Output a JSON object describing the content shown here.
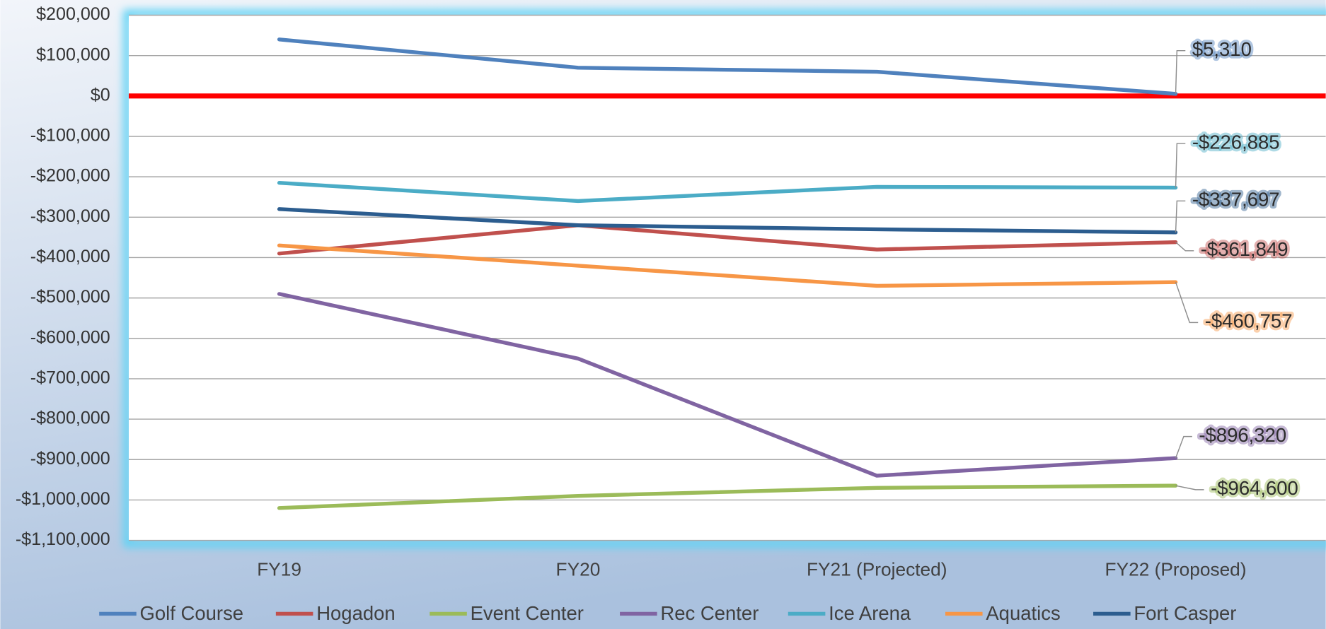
{
  "chart_data": {
    "type": "line",
    "categories": [
      "FY19",
      "FY20",
      "FY21 (Projected)",
      "FY22 (Proposed)"
    ],
    "series": [
      {
        "name": "Golf Course",
        "color": "#4f81bd",
        "values": [
          140000,
          70000,
          60000,
          5310
        ],
        "value_labels": [
          null,
          null,
          null,
          "$5,310"
        ]
      },
      {
        "name": "Hogadon",
        "color": "#c0504d",
        "values": [
          -390000,
          -320000,
          -380000,
          -361849
        ],
        "value_labels": [
          null,
          null,
          null,
          "-$361,849"
        ]
      },
      {
        "name": "Event Center",
        "color": "#9bbb59",
        "values": [
          -1020000,
          -990000,
          -970000,
          -964600
        ],
        "value_labels": [
          null,
          null,
          null,
          "-$964,600"
        ]
      },
      {
        "name": "Rec Center",
        "color": "#8064a2",
        "values": [
          -490000,
          -650000,
          -940000,
          -896320
        ],
        "value_labels": [
          null,
          null,
          null,
          "-$896,320"
        ]
      },
      {
        "name": "Ice Arena",
        "color": "#4bacc6",
        "values": [
          -215000,
          -260000,
          -225000,
          -226885
        ],
        "value_labels": [
          null,
          null,
          null,
          "-$226,885"
        ]
      },
      {
        "name": "Aquatics",
        "color": "#f79646",
        "values": [
          -370000,
          -420000,
          -470000,
          -460757
        ],
        "value_labels": [
          null,
          null,
          null,
          "-$460,757"
        ]
      },
      {
        "name": "Fort Casper",
        "color": "#2c5d8f",
        "values": [
          -280000,
          -320000,
          -330000,
          -337697
        ],
        "value_labels": [
          null,
          null,
          null,
          "-$337,697"
        ]
      }
    ],
    "ylim": [
      -1100000,
      200000
    ],
    "yticks": [
      {
        "value": 200000,
        "label": "$200,000"
      },
      {
        "value": 100000,
        "label": "$100,000"
      },
      {
        "value": 0,
        "label": "$0"
      },
      {
        "value": -100000,
        "label": "-$100,000"
      },
      {
        "value": -200000,
        "label": "-$200,000"
      },
      {
        "value": -300000,
        "label": "-$300,000"
      },
      {
        "value": -400000,
        "label": "-$400,000"
      },
      {
        "value": -500000,
        "label": "-$500,000"
      },
      {
        "value": -600000,
        "label": "-$600,000"
      },
      {
        "value": -700000,
        "label": "-$700,000"
      },
      {
        "value": -800000,
        "label": "-$800,000"
      },
      {
        "value": -900000,
        "label": "-$900,000"
      },
      {
        "value": -1000000,
        "label": "-$1,000,000"
      },
      {
        "value": -1100000,
        "label": "-$1,100,000"
      }
    ],
    "grid": true,
    "zero_line_color": "#ff0000",
    "legend": "bottom"
  }
}
